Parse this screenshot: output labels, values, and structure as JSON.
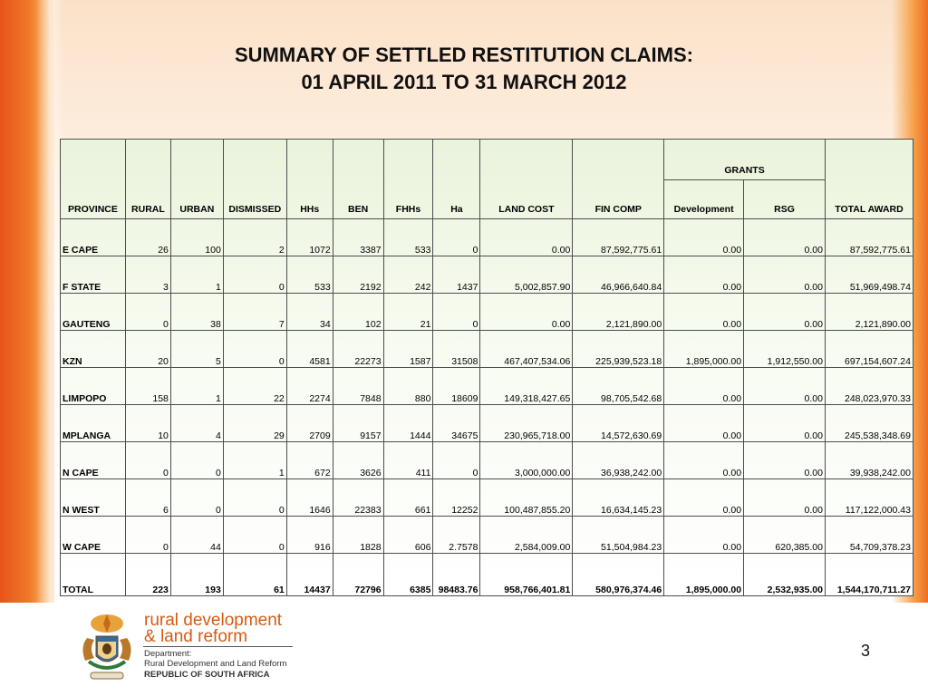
{
  "title": {
    "line1": "SUMMARY OF SETTLED RESTITUTION CLAIMS:",
    "line2": "01 APRIL 2011 TO 31 MARCH 2012"
  },
  "table": {
    "headers": {
      "province": "PROVINCE",
      "rural": "RURAL",
      "urban": "URBAN",
      "dismissed": "DISMISSED",
      "hhs": "HHs",
      "ben": "BEN",
      "fhhs": "FHHs",
      "ha": "Ha",
      "land_cost": "LAND COST",
      "fin_comp": "FIN COMP",
      "grants": "GRANTS",
      "development": "Development",
      "rsg": "RSG",
      "total_award": "TOTAL AWARD"
    },
    "rows": [
      [
        "E CAPE",
        "26",
        "100",
        "2",
        "1072",
        "3387",
        "533",
        "0",
        "0.00",
        "87,592,775.61",
        "0.00",
        "0.00",
        "87,592,775.61"
      ],
      [
        "F STATE",
        "3",
        "1",
        "0",
        "533",
        "2192",
        "242",
        "1437",
        "5,002,857.90",
        "46,966,640.84",
        "0.00",
        "0.00",
        "51,969,498.74"
      ],
      [
        "GAUTENG",
        "0",
        "38",
        "7",
        "34",
        "102",
        "21",
        "0",
        "0.00",
        "2,121,890.00",
        "0.00",
        "0.00",
        "2,121,890.00"
      ],
      [
        "KZN",
        "20",
        "5",
        "0",
        "4581",
        "22273",
        "1587",
        "31508",
        "467,407,534.06",
        "225,939,523.18",
        "1,895,000.00",
        "1,912,550.00",
        "697,154,607.24"
      ],
      [
        "LIMPOPO",
        "158",
        "1",
        "22",
        "2274",
        "7848",
        "880",
        "18609",
        "149,318,427.65",
        "98,705,542.68",
        "0.00",
        "0.00",
        "248,023,970.33"
      ],
      [
        "MPLANGA",
        "10",
        "4",
        "29",
        "2709",
        "9157",
        "1444",
        "34675",
        "230,965,718.00",
        "14,572,630.69",
        "0.00",
        "0.00",
        "245,538,348.69"
      ],
      [
        "N CAPE",
        "0",
        "0",
        "1",
        "672",
        "3626",
        "411",
        "0",
        "3,000,000.00",
        "36,938,242.00",
        "0.00",
        "0.00",
        "39,938,242.00"
      ],
      [
        "N WEST",
        "6",
        "0",
        "0",
        "1646",
        "22383",
        "661",
        "12252",
        "100,487,855.20",
        "16,634,145.23",
        "0.00",
        "0.00",
        "117,122,000.43"
      ],
      [
        "W CAPE",
        "0",
        "44",
        "0",
        "916",
        "1828",
        "606",
        "2.7578",
        "2,584,009.00",
        "51,504,984.23",
        "0.00",
        "620,385.00",
        "54,709,378.23"
      ]
    ],
    "total": [
      "TOTAL",
      "223",
      "193",
      "61",
      "14437",
      "72796",
      "6385",
      "98483.76",
      "958,766,401.81",
      "580,976,374.46",
      "1,895,000.00",
      "2,532,935.00",
      "1,544,170,711.27"
    ]
  },
  "footer": {
    "brand_line1": "rural development",
    "brand_line2": "& land reform",
    "dept_line1": "Department:",
    "dept_line2": "Rural Development and Land Reform",
    "dept_line3": "REPUBLIC OF SOUTH AFRICA",
    "crest_icon": "coat-of-arms-icon",
    "brand_color": "#d65a14"
  },
  "page_number": "3"
}
